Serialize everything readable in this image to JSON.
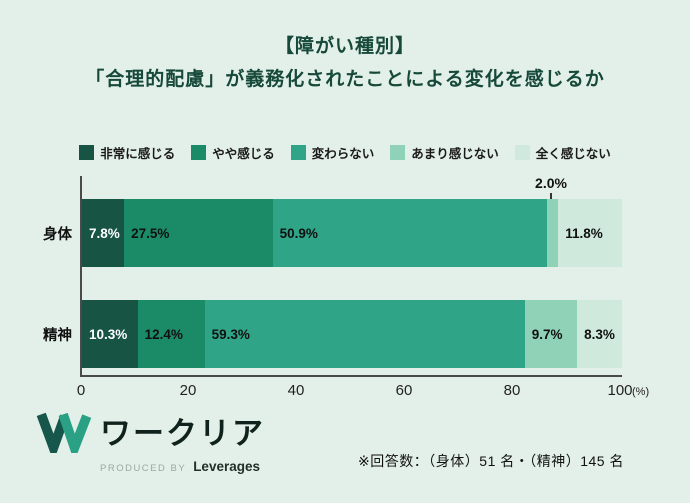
{
  "title": {
    "line1": "【障がい種別】",
    "line2": "「合理的配慮」が義務化されたことによる変化を感じるか"
  },
  "colors": {
    "background": "#e3f0ea",
    "title_text": "#16493a",
    "axis": "#4a4a4a"
  },
  "chart_data": {
    "type": "bar",
    "orientation": "horizontal",
    "stacked": true,
    "title": "【障がい種別】「合理的配慮」が義務化されたことによる変化を感じるか",
    "categories": [
      "身体",
      "精神"
    ],
    "series": [
      {
        "name": "非常に感じる",
        "values": [
          7.8,
          10.3
        ],
        "color": "#175443",
        "label_color": "#ffffff"
      },
      {
        "name": "やや感じる",
        "values": [
          27.5,
          12.4
        ],
        "color": "#1b8a66",
        "label_color": "#101010"
      },
      {
        "name": "変わらない",
        "values": [
          50.9,
          59.3
        ],
        "color": "#30a487",
        "label_color": "#101010"
      },
      {
        "name": "あまり感じない",
        "values": [
          2.0,
          9.7
        ],
        "color": "#8fd2b8",
        "label_color": "#101010"
      },
      {
        "name": "全く感じない",
        "values": [
          11.8,
          8.3
        ],
        "color": "#cfeadd",
        "label_color": "#101010"
      }
    ],
    "x_ticks": [
      "0",
      "20",
      "40",
      "60",
      "80",
      "100"
    ],
    "x_unit": "(%)",
    "xlim": [
      0,
      100
    ],
    "legend_position": "top",
    "grid": false,
    "callout": {
      "text": "2.0%",
      "category": "身体",
      "series": "あまり感じない"
    }
  },
  "footer": {
    "logo_text": "ワークリア",
    "produced_by": "PRODUCED BY",
    "company": "Leverages",
    "note": "※回答数：（身体）51 名・（精神）145 名"
  }
}
